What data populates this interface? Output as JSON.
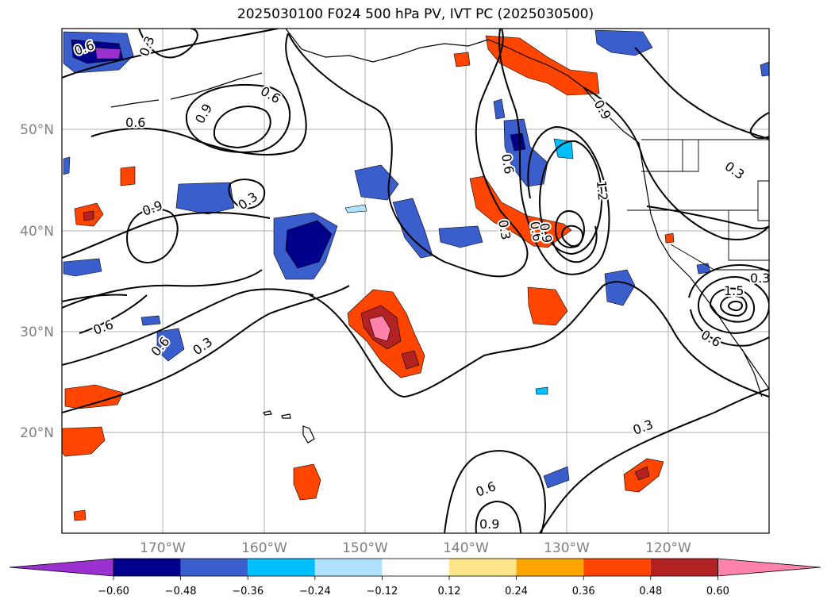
{
  "title": "2025030100 F024 500 hPa PV, IVT PC (2025030500)",
  "lat_labels": [
    "50°N",
    "40°N",
    "30°N",
    "20°N"
  ],
  "lon_labels": [
    "170°W",
    "160°W",
    "150°W",
    "140°W",
    "130°W",
    "120°W"
  ],
  "colorbar": {
    "ticks": [
      "−0.60",
      "−0.48",
      "−0.36",
      "−0.24",
      "−0.12",
      "0.12",
      "0.24",
      "0.36",
      "0.48",
      "0.60"
    ],
    "colors": [
      "#9b30d0",
      "#00008b",
      "#3a5fcd",
      "#00bfff",
      "#b0e2ff",
      "#ffffff",
      "#fde68a",
      "#ffa500",
      "#ff4500",
      "#b22222",
      "#ff82ab"
    ]
  },
  "contour_labels": [
    "0.6",
    "0.3",
    "0.6",
    "0.9",
    "0.6",
    "0.9",
    "0.3",
    "0.6",
    "0.6",
    "0.3",
    "0.6",
    "0.3",
    "0.6",
    "0.9",
    "1.2",
    "0.3",
    "1.5",
    "0.3",
    "0.6",
    "0.3",
    "0.6",
    "0.9",
    "0.9"
  ]
}
